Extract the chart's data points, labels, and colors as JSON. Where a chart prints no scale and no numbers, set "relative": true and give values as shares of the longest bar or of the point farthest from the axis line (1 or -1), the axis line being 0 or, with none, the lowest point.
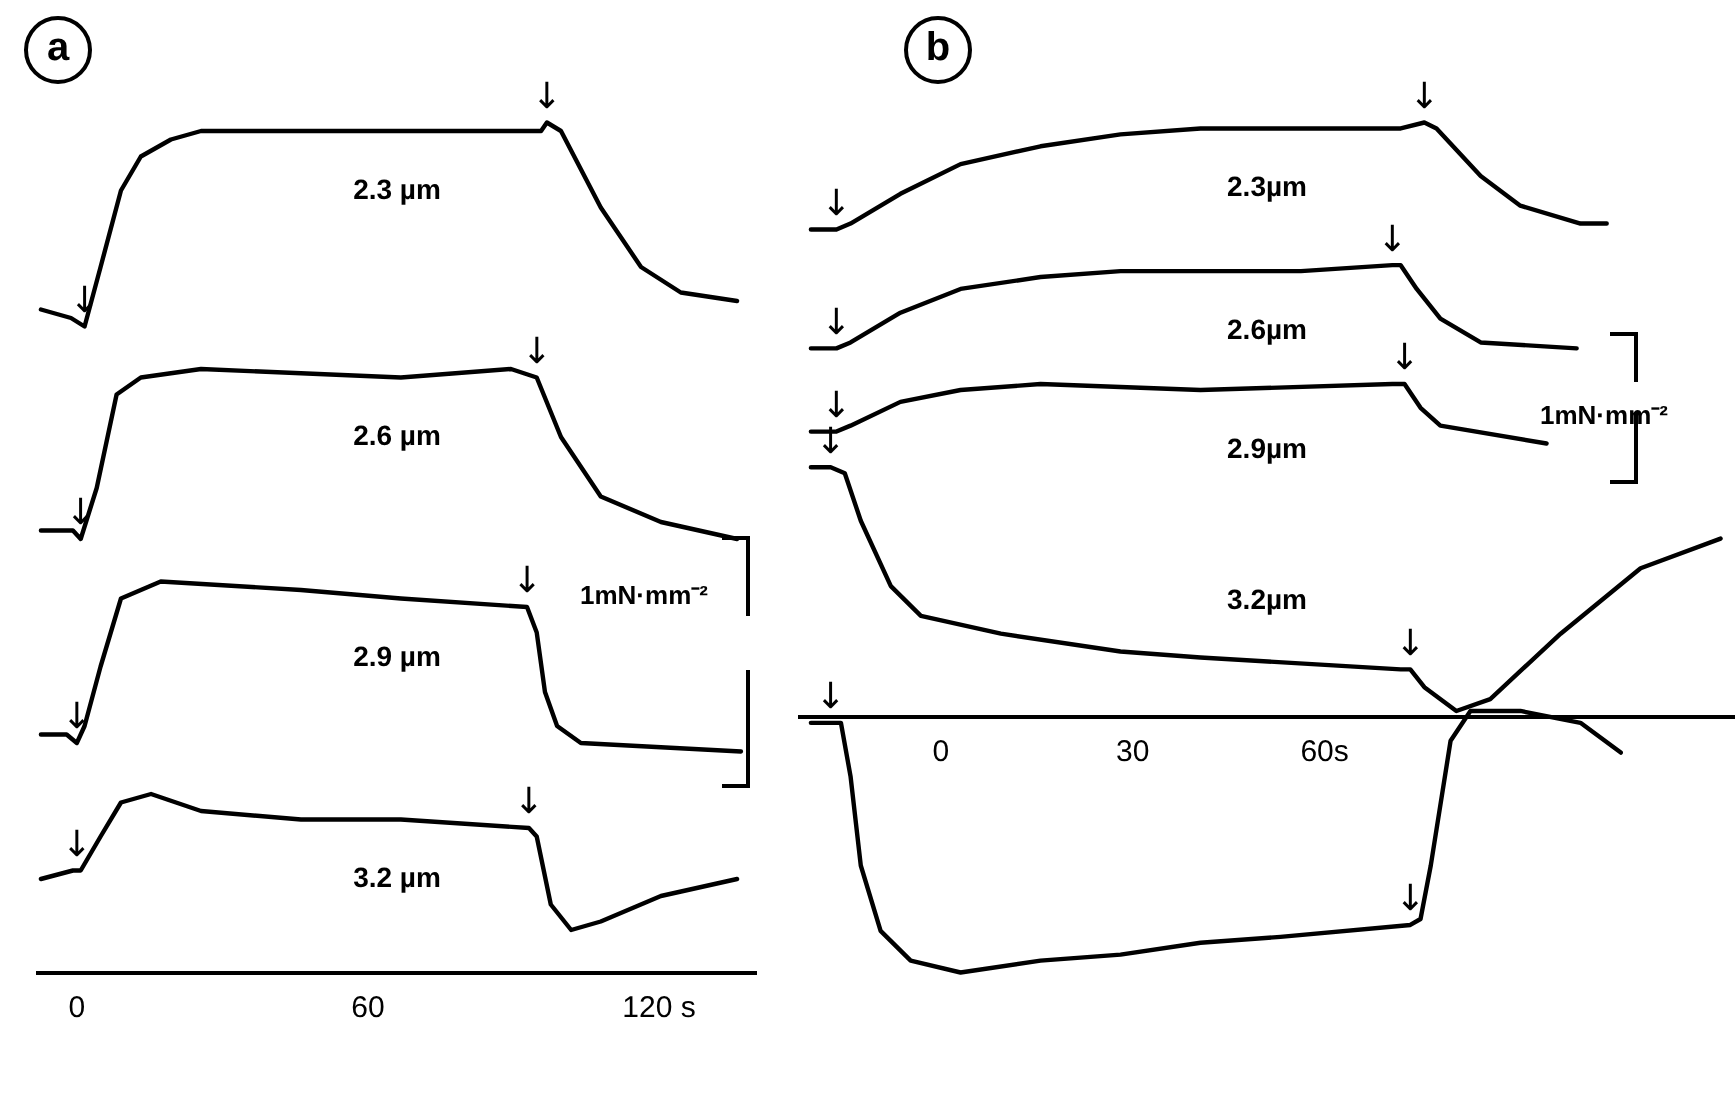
{
  "chart_data": [
    {
      "type": "line",
      "title": "a",
      "relative": true,
      "xlim": [
        -8,
        140
      ],
      "xticks": [
        0,
        60,
        {
          "value": 120,
          "label": "120 s"
        }
      ],
      "marker": "none",
      "line_style": "solid",
      "legend": false,
      "grid": false,
      "annotations": [
        "1mN·mm⁻²",
        {
          "text": "↓",
          "x": 1.6,
          "y": 0.76
        },
        {
          "text": "↓",
          "x": 96.9,
          "y": 1
        },
        {
          "text": "↓",
          "x": 0.8,
          "y": 0.51
        },
        {
          "text": "↓",
          "x": 94.8,
          "y": 0.7
        },
        {
          "text": "↓",
          "x": 0,
          "y": 0.27
        },
        {
          "text": "↓",
          "x": 92.8,
          "y": 0.43
        },
        {
          "text": "↓",
          "x": 0,
          "y": 0.12
        },
        {
          "text": "↓",
          "x": 93.2,
          "y": 0.17
        }
      ],
      "series": [
        {
          "name": "2.3 µm",
          "color": "#000000",
          "x": [
            -7.4,
            -1.2,
            1.6,
            4.9,
            9.1,
            13.2,
            19.4,
            25.6,
            46.2,
            66.8,
            95.7,
            96.9,
            99.8,
            108,
            116.3,
            124.5,
            136.1
          ],
          "values": [
            0.78,
            0.77,
            0.76,
            0.83,
            0.92,
            0.96,
            0.98,
            0.99,
            0.99,
            0.99,
            0.99,
            1,
            0.99,
            0.9,
            0.83,
            0.8,
            0.79
          ]
        },
        {
          "name": "2.6 µm",
          "color": "#000000",
          "x": [
            -7.4,
            -0.8,
            0.8,
            4.1,
            8.2,
            13.2,
            25.6,
            66.8,
            89.5,
            94.8,
            99.8,
            108,
            120.4,
            136.1
          ],
          "values": [
            0.52,
            0.52,
            0.51,
            0.57,
            0.68,
            0.7,
            0.71,
            0.7,
            0.71,
            0.7,
            0.63,
            0.56,
            0.53,
            0.51
          ]
        },
        {
          "name": "2.9 µm",
          "color": "#000000",
          "x": [
            -7.4,
            -2.1,
            0,
            1.6,
            4.9,
            9.1,
            17.3,
            46.2,
            66.8,
            92.8,
            94.8,
            96.5,
            99,
            103.9,
            136.9
          ],
          "values": [
            0.28,
            0.28,
            0.27,
            0.29,
            0.36,
            0.44,
            0.46,
            0.45,
            0.44,
            0.43,
            0.4,
            0.33,
            0.29,
            0.27,
            0.26
          ]
        },
        {
          "name": "3.2 µm",
          "color": "#000000",
          "x": [
            -7.4,
            -0.8,
            0.8,
            4.9,
            9.1,
            15.3,
            25.6,
            46.2,
            66.8,
            93.2,
            94.8,
            97.7,
            101.9,
            108,
            120.4,
            136.1
          ],
          "values": [
            0.11,
            0.12,
            0.12,
            0.16,
            0.2,
            0.21,
            0.19,
            0.18,
            0.18,
            0.17,
            0.16,
            0.08,
            0.05,
            0.06,
            0.09,
            0.11
          ]
        }
      ]
    },
    {
      "type": "line",
      "title": "b",
      "relative": true,
      "xlim": [
        -22,
        124
      ],
      "xticks": [
        0,
        30,
        {
          "value": 60,
          "label": "60s"
        }
      ],
      "marker": "none",
      "line_style": "solid",
      "legend": false,
      "grid": false,
      "annotations": [
        "1mN·mm⁻²",
        {
          "text": "↓",
          "x": -16.3,
          "y": 0.82
        },
        {
          "text": "↓",
          "x": 75.6,
          "y": 1
        },
        {
          "text": "↓",
          "x": -16.3,
          "y": 0.62
        },
        {
          "text": "↓",
          "x": 70.6,
          "y": 0.76
        },
        {
          "text": "↓",
          "x": -16.3,
          "y": 0.48
        },
        {
          "text": "↓",
          "x": 72.5,
          "y": 0.56
        },
        {
          "text": "↓",
          "x": -17.2,
          "y": 0.42
        },
        {
          "text": "↓",
          "x": 73.4,
          "y": 0.08
        },
        {
          "text": "↓",
          "x": -17.2,
          "y": -0.01
        },
        {
          "text": "↓",
          "x": 73.4,
          "y": -0.35
        }
      ],
      "series": [
        {
          "name": "2.3µm",
          "color": "#000000",
          "x": [
            -20.3,
            -16.3,
            -14.1,
            -6.3,
            3.1,
            15.6,
            28.1,
            40.6,
            56.3,
            71.9,
            75.6,
            77.5,
            84.4,
            90.6,
            100,
            104.1
          ],
          "values": [
            0.82,
            0.82,
            0.83,
            0.88,
            0.93,
            0.96,
            0.98,
            0.99,
            0.99,
            0.99,
            1,
            0.99,
            0.91,
            0.86,
            0.83,
            0.83
          ]
        },
        {
          "name": "2.6µm",
          "color": "#000000",
          "x": [
            -20.3,
            -16.3,
            -14.1,
            -6.3,
            3.1,
            15.6,
            28.1,
            56.3,
            70.6,
            71.9,
            74.4,
            78.1,
            84.4,
            99.4
          ],
          "values": [
            0.62,
            0.62,
            0.63,
            0.68,
            0.72,
            0.74,
            0.75,
            0.75,
            0.76,
            0.76,
            0.72,
            0.67,
            0.63,
            0.62
          ]
        },
        {
          "name": "2.9µm",
          "color": "#000000",
          "x": [
            -20.3,
            -16.3,
            -14.1,
            -6.3,
            3.1,
            15.6,
            40.6,
            70.6,
            72.5,
            75,
            78.1,
            94.7
          ],
          "values": [
            0.48,
            0.48,
            0.49,
            0.53,
            0.55,
            0.56,
            0.55,
            0.56,
            0.56,
            0.52,
            0.49,
            0.46
          ]
        },
        {
          "name": "3.2µm",
          "color": "#000000",
          "x": [
            -20.3,
            -17.2,
            -15,
            -12.5,
            -7.8,
            -3.1,
            9.4,
            28.1,
            40.6,
            71.9,
            73.4,
            75.6,
            80.6,
            85.9,
            96.9,
            109.4,
            121.9
          ],
          "values": [
            0.42,
            0.42,
            0.41,
            0.33,
            0.22,
            0.17,
            0.14,
            0.11,
            0.1,
            0.08,
            0.08,
            0.05,
            0.01,
            0.03,
            0.14,
            0.25,
            0.3
          ]
        },
        {
          "color": "#000000",
          "x": [
            -20.3,
            -17.2,
            -15.6,
            -14.1,
            -12.5,
            -9.4,
            -4.7,
            3.1,
            15.6,
            28.1,
            40.6,
            53.1,
            73.4,
            75,
            76.6,
            79.7,
            82.8,
            90.6,
            100,
            106.3
          ],
          "values": [
            -0.01,
            -0.01,
            -0.01,
            -0.1,
            -0.25,
            -0.36,
            -0.41,
            -0.43,
            -0.41,
            -0.4,
            -0.38,
            -0.37,
            -0.35,
            -0.34,
            -0.25,
            -0.04,
            0.01,
            0.01,
            -0.01,
            -0.06
          ]
        }
      ]
    }
  ]
}
